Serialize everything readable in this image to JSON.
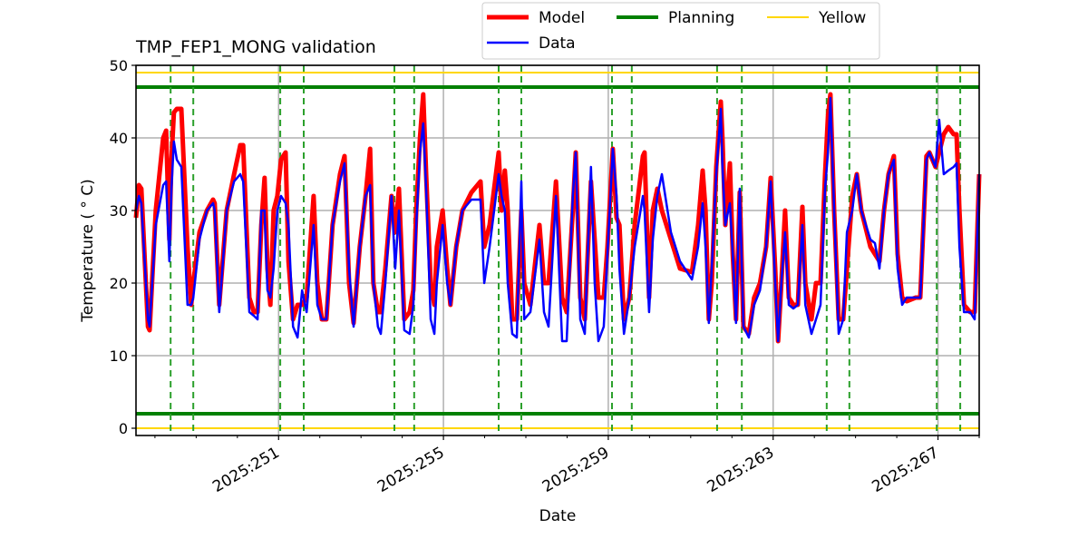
{
  "chart_data": {
    "type": "line",
    "title": "TMP_FEP1_MONG validation",
    "xlabel": "Date",
    "ylabel": "Temperature ( ° C)",
    "xlim": [
      247.54,
      268.0
    ],
    "ylim": [
      -1,
      50
    ],
    "grid": true,
    "legend_placement": "top-center-outside",
    "xticks": [
      251,
      255,
      259,
      263,
      267
    ],
    "xtick_labels": [
      "2025:251",
      "2025:255",
      "2025:259",
      "2025:263",
      "2025:267"
    ],
    "xminor_step": 1,
    "yticks": [
      0,
      10,
      20,
      30,
      40,
      50
    ],
    "ytick_labels": [
      "0",
      "10",
      "20",
      "30",
      "40",
      "50"
    ],
    "x": [
      247.54,
      247.61,
      247.67,
      247.83,
      247.87,
      248.02,
      248.2,
      248.27,
      248.35,
      248.4,
      248.46,
      248.53,
      248.64,
      248.79,
      248.88,
      248.93,
      249.08,
      249.26,
      249.41,
      249.45,
      249.56,
      249.74,
      249.92,
      250.07,
      250.14,
      250.29,
      250.4,
      250.49,
      250.58,
      250.66,
      250.73,
      250.8,
      250.88,
      250.97,
      251.06,
      251.17,
      251.24,
      251.35,
      251.46,
      251.57,
      251.68,
      251.85,
      251.94,
      252.05,
      252.16,
      252.31,
      252.49,
      252.6,
      252.71,
      252.82,
      252.97,
      253.11,
      253.22,
      253.3,
      253.41,
      253.48,
      253.59,
      253.74,
      253.83,
      253.92,
      254.05,
      254.18,
      254.27,
      254.34,
      254.43,
      254.51,
      254.58,
      254.69,
      254.78,
      254.84,
      254.98,
      255.09,
      255.17,
      255.31,
      255.46,
      255.68,
      255.9,
      255.99,
      256.12,
      256.23,
      256.34,
      256.41,
      256.49,
      256.56,
      256.67,
      256.78,
      256.89,
      256.96,
      257.11,
      257.33,
      257.44,
      257.55,
      257.73,
      257.88,
      257.99,
      258.14,
      258.21,
      258.32,
      258.43,
      258.58,
      258.67,
      258.76,
      258.89,
      258.98,
      259.11,
      259.2,
      259.27,
      259.38,
      259.51,
      259.64,
      259.84,
      259.88,
      259.99,
      260.08,
      260.19,
      260.3,
      260.52,
      260.74,
      261.03,
      261.18,
      261.29,
      261.36,
      261.44,
      261.51,
      261.62,
      261.73,
      261.77,
      261.84,
      261.95,
      262.02,
      262.1,
      262.19,
      262.28,
      262.41,
      262.54,
      262.68,
      262.83,
      262.94,
      263.05,
      263.12,
      263.2,
      263.29,
      263.38,
      263.49,
      263.6,
      263.71,
      263.78,
      263.93,
      264.04,
      264.15,
      264.26,
      264.33,
      264.39,
      264.48,
      264.59,
      264.7,
      264.79,
      264.92,
      265.03,
      265.14,
      265.36,
      265.47,
      265.58,
      265.69,
      265.8,
      265.93,
      266.02,
      266.13,
      266.24,
      266.46,
      266.57,
      266.72,
      266.79,
      266.94,
      267.03,
      267.14,
      267.25,
      267.38,
      267.45,
      267.52,
      267.63,
      267.78,
      267.89,
      268.0
    ],
    "series": [
      {
        "name": "Model",
        "color": "#ff0000",
        "values": [
          29,
          33.5,
          33,
          14,
          13.5,
          30,
          40,
          41,
          26,
          37,
          43.5,
          44,
          44,
          25,
          17,
          20,
          27,
          30,
          31.5,
          31,
          17,
          30,
          35,
          39,
          39,
          18,
          16,
          16,
          28,
          34.5,
          22,
          17,
          30,
          32,
          37,
          38,
          23,
          15,
          17,
          17,
          18,
          32,
          20,
          15,
          15,
          28,
          35,
          37.5,
          20,
          14.5,
          25,
          32,
          38.5,
          20,
          16,
          16,
          22,
          32,
          27,
          33,
          15,
          16,
          19,
          30,
          40,
          46,
          35,
          20,
          17,
          25,
          30,
          22,
          17,
          25,
          30,
          32.5,
          34,
          25,
          28,
          33,
          38,
          30,
          35.5,
          30,
          15,
          15,
          30,
          20,
          17,
          28,
          20,
          20,
          34,
          18,
          16,
          30,
          38,
          18,
          15,
          34,
          26,
          18,
          18,
          25,
          38.5,
          29,
          28,
          15,
          18,
          28,
          37.5,
          38,
          18,
          30,
          33,
          30,
          26,
          22,
          21.5,
          28,
          35.5,
          30,
          15,
          20,
          36,
          45,
          40,
          28,
          36.5,
          24,
          15,
          32.5,
          14,
          13,
          18,
          20,
          25,
          34.5,
          22,
          12,
          20,
          30,
          18,
          17,
          17,
          30.5,
          20,
          15,
          20,
          20,
          35,
          43,
          46,
          30,
          15,
          15,
          22,
          32,
          35,
          30,
          25,
          24,
          23,
          30,
          35,
          37.5,
          24,
          18,
          17.5,
          18,
          18,
          37.5,
          38,
          36,
          38,
          40.5,
          41.5,
          40.5,
          40.5,
          30,
          17,
          16,
          16,
          35
        ]
      },
      {
        "name": "Data",
        "color": "#0000ff",
        "values": [
          30,
          32,
          31,
          15,
          14,
          28,
          33.5,
          34,
          23,
          33,
          39.5,
          37,
          36,
          17,
          17,
          18,
          26,
          30,
          31,
          30,
          16,
          30,
          34,
          35,
          34,
          16,
          15.5,
          15,
          30,
          30,
          19,
          18,
          22,
          30,
          32,
          31,
          28,
          14,
          12.5,
          19,
          16,
          28,
          17,
          15,
          15,
          28,
          34,
          36.5,
          22,
          14,
          25,
          32,
          33.5,
          20,
          14,
          13,
          20,
          32,
          22,
          30,
          13.5,
          13,
          17,
          28,
          38,
          42,
          33,
          15,
          13,
          20,
          28,
          20,
          17,
          25,
          30,
          31.5,
          31.5,
          20,
          25,
          30,
          35,
          32,
          30,
          20,
          13,
          12.5,
          34,
          15,
          16,
          26,
          16,
          14,
          32,
          12,
          12,
          32,
          38,
          15,
          13,
          36,
          20,
          12,
          14,
          24,
          38.5,
          32,
          22,
          13,
          18,
          25,
          32,
          30,
          16,
          26,
          32,
          35,
          27,
          23,
          20.5,
          25,
          31,
          25,
          14.5,
          22,
          35,
          44,
          36,
          28,
          31,
          24,
          14.5,
          33,
          14,
          12.5,
          17,
          19,
          25,
          34,
          20,
          12,
          20,
          27,
          17,
          16.5,
          17,
          28,
          17,
          13,
          15,
          17,
          33,
          38,
          45.5,
          30,
          13,
          15,
          27,
          30,
          35,
          30,
          26,
          25.5,
          22,
          30,
          35,
          37,
          22,
          17,
          18,
          18,
          18,
          37,
          38,
          36,
          42.5,
          35,
          35.5,
          36,
          36.5,
          25,
          16,
          16,
          15,
          35
        ]
      }
    ],
    "hlines": [
      {
        "name": "Planning",
        "color": "#008000",
        "values": [
          2,
          47
        ]
      },
      {
        "name": "Yellow",
        "color": "#ffd700",
        "values": [
          0,
          49
        ]
      }
    ],
    "vlines": {
      "color": "#2ca02c",
      "style": "dashed",
      "values": [
        248.38,
        248.93,
        251.04,
        251.61,
        253.81,
        254.29,
        256.34,
        256.89,
        259.09,
        259.57,
        261.64,
        262.24,
        264.3,
        264.85,
        266.97,
        267.54
      ]
    },
    "legend": [
      "Model",
      "Planning",
      "Yellow",
      "Data"
    ]
  }
}
